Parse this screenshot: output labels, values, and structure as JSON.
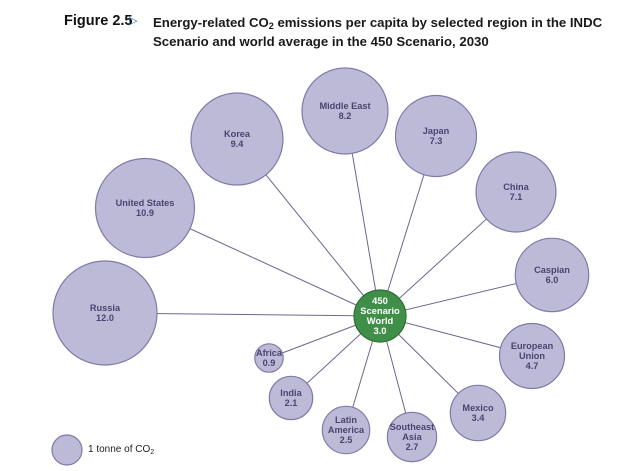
{
  "figure": {
    "label": "Figure 2.5",
    "arrow": "▷",
    "title_pre": "Energy-related CO",
    "title_sub": "2",
    "title_post": " emissions per capita by selected region in the INDC Scenario and world average in the 450 Scenario, 2030"
  },
  "legend": {
    "text_pre": "1 tonne of CO",
    "text_sub": "2"
  },
  "chart_data": {
    "type": "bubble",
    "unit": "tonnes of CO2 per capita",
    "center": {
      "lines": [
        "450",
        "Scenario",
        "World"
      ],
      "value": 3.0,
      "value_label": "3.0"
    },
    "regions": [
      {
        "name": "Russia",
        "lines": [
          "Russia"
        ],
        "value": 12.0,
        "value_label": "12.0"
      },
      {
        "name": "United States",
        "lines": [
          "United States"
        ],
        "value": 10.9,
        "value_label": "10.9"
      },
      {
        "name": "Korea",
        "lines": [
          "Korea"
        ],
        "value": 9.4,
        "value_label": "9.4"
      },
      {
        "name": "Middle East",
        "lines": [
          "Middle East"
        ],
        "value": 8.2,
        "value_label": "8.2"
      },
      {
        "name": "Japan",
        "lines": [
          "Japan"
        ],
        "value": 7.3,
        "value_label": "7.3"
      },
      {
        "name": "China",
        "lines": [
          "China"
        ],
        "value": 7.1,
        "value_label": "7.1"
      },
      {
        "name": "Caspian",
        "lines": [
          "Caspian"
        ],
        "value": 6.0,
        "value_label": "6.0"
      },
      {
        "name": "European Union",
        "lines": [
          "European",
          "Union"
        ],
        "value": 4.7,
        "value_label": "4.7"
      },
      {
        "name": "Mexico",
        "lines": [
          "Mexico"
        ],
        "value": 3.4,
        "value_label": "3.4"
      },
      {
        "name": "Southeast Asia",
        "lines": [
          "Southeast",
          "Asia"
        ],
        "value": 2.7,
        "value_label": "2.7"
      },
      {
        "name": "Latin America",
        "lines": [
          "Latin",
          "America"
        ],
        "value": 2.5,
        "value_label": "2.5"
      },
      {
        "name": "India",
        "lines": [
          "India"
        ],
        "value": 2.1,
        "value_label": "2.1"
      },
      {
        "name": "Africa",
        "lines": [
          "Africa"
        ],
        "value": 0.9,
        "value_label": "0.9"
      }
    ]
  }
}
